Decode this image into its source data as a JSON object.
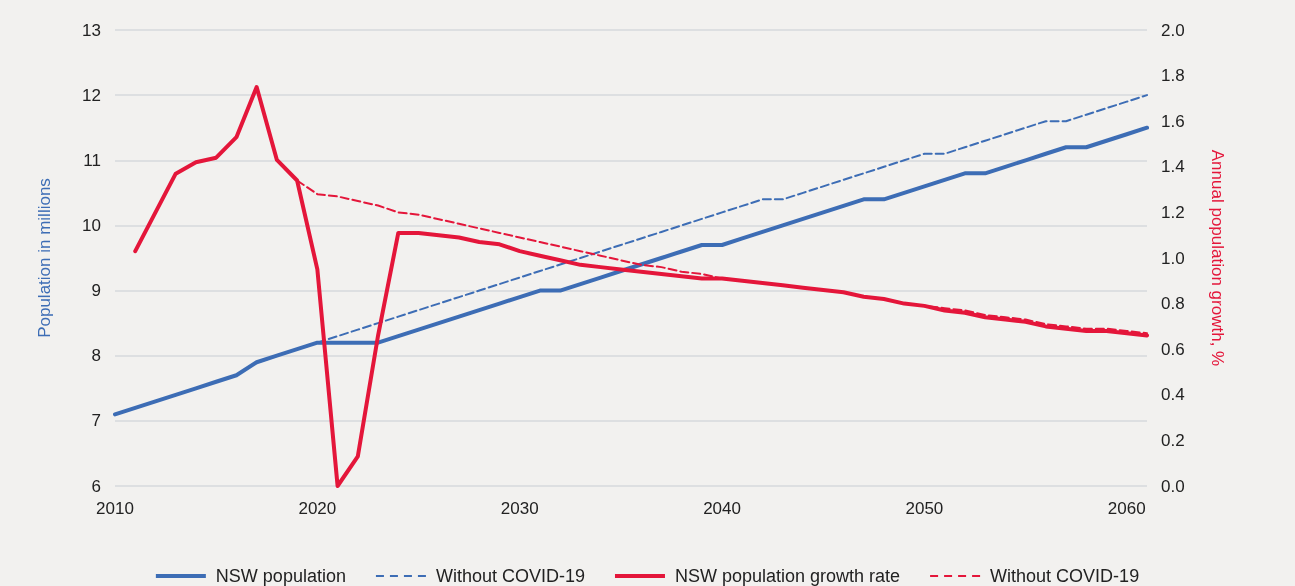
{
  "chart_data": {
    "type": "line",
    "ylabel": "Population in millions",
    "y2label": "Annual population growth, %",
    "xlim": [
      2010,
      2061
    ],
    "xticks": [
      2010,
      2020,
      2030,
      2040,
      2050,
      2060
    ],
    "ylim": [
      6,
      13
    ],
    "yticks": [
      6,
      7,
      8,
      9,
      10,
      11,
      12,
      13
    ],
    "y2lim": [
      0,
      2
    ],
    "y2ticks": [
      {
        "value": 0,
        "label": "0.0"
      },
      {
        "value": 0.2,
        "label": "0.2"
      },
      {
        "value": 0.4,
        "label": "0.4"
      },
      {
        "value": 0.6,
        "label": "0.6"
      },
      {
        "value": 0.8,
        "label": "0.8"
      },
      {
        "value": 1,
        "label": "1.0"
      },
      {
        "value": 1.2,
        "label": "1.2"
      },
      {
        "value": 1.4,
        "label": "1.4"
      },
      {
        "value": 1.6,
        "label": "1.6"
      },
      {
        "value": 1.8,
        "label": "1.8"
      },
      {
        "value": 2,
        "label": "2.0"
      }
    ],
    "grid": "y",
    "legend": "bottom",
    "marker": "none",
    "series": [
      {
        "name": "NSW population",
        "color": "#3d6db5",
        "line_style": "solid",
        "x": [
          2010,
          2011,
          2012,
          2013,
          2014,
          2015,
          2016,
          2017,
          2018,
          2019,
          2020,
          2021,
          2022,
          2023,
          2024,
          2025,
          2026,
          2027,
          2028,
          2029,
          2030,
          2031,
          2032,
          2033,
          2034,
          2035,
          2036,
          2037,
          2038,
          2039,
          2040,
          2041,
          2042,
          2043,
          2044,
          2045,
          2046,
          2047,
          2048,
          2049,
          2050,
          2051,
          2052,
          2053,
          2054,
          2055,
          2056,
          2057,
          2058,
          2059,
          2060,
          2061
        ],
        "values": [
          7.1,
          7.2,
          7.3,
          7.4,
          7.5,
          7.6,
          7.7,
          7.9,
          8.0,
          8.1,
          8.2,
          8.2,
          8.2,
          8.2,
          8.3,
          8.4,
          8.5,
          8.6,
          8.7,
          8.8,
          8.9,
          9.0,
          9.0,
          9.1,
          9.2,
          9.3,
          9.4,
          9.5,
          9.6,
          9.7,
          9.7,
          9.8,
          9.9,
          10.0,
          10.1,
          10.2,
          10.3,
          10.4,
          10.4,
          10.5,
          10.6,
          10.7,
          10.8,
          10.8,
          10.9,
          11.0,
          11.1,
          11.2,
          11.2,
          11.3,
          11.4,
          11.5
        ]
      },
      {
        "name": "Without COVID-19",
        "color": "#3d6db5",
        "line_style": "dashed",
        "x": [
          2020,
          2021,
          2022,
          2023,
          2024,
          2025,
          2026,
          2027,
          2028,
          2029,
          2030,
          2031,
          2032,
          2033,
          2034,
          2035,
          2036,
          2037,
          2038,
          2039,
          2040,
          2041,
          2042,
          2043,
          2044,
          2045,
          2046,
          2047,
          2048,
          2049,
          2050,
          2051,
          2052,
          2053,
          2054,
          2055,
          2056,
          2057,
          2058,
          2059,
          2060,
          2061
        ],
        "values": [
          8.2,
          8.3,
          8.4,
          8.5,
          8.6,
          8.7,
          8.8,
          8.9,
          9.0,
          9.1,
          9.2,
          9.3,
          9.4,
          9.5,
          9.6,
          9.7,
          9.8,
          9.9,
          10.0,
          10.1,
          10.2,
          10.3,
          10.4,
          10.4,
          10.5,
          10.6,
          10.7,
          10.8,
          10.9,
          11.0,
          11.1,
          11.1,
          11.2,
          11.3,
          11.4,
          11.5,
          11.6,
          11.6,
          11.7,
          11.8,
          11.9,
          12.0
        ]
      },
      {
        "name": "NSW population growth rate",
        "color": "#e4163a",
        "line_style": "solid",
        "axis": "y2",
        "x": [
          2011,
          2012,
          2013,
          2014,
          2015,
          2016,
          2017,
          2018,
          2019,
          2020,
          2021,
          2022,
          2023,
          2024,
          2025,
          2026,
          2027,
          2028,
          2029,
          2030,
          2031,
          2032,
          2033,
          2034,
          2035,
          2036,
          2037,
          2038,
          2039,
          2040,
          2041,
          2042,
          2043,
          2044,
          2045,
          2046,
          2047,
          2048,
          2049,
          2050,
          2051,
          2052,
          2053,
          2054,
          2055,
          2056,
          2057,
          2058,
          2059,
          2060,
          2061
        ],
        "values": [
          1.03,
          1.2,
          1.37,
          1.42,
          1.44,
          1.53,
          1.75,
          1.43,
          1.34,
          0.95,
          0.0,
          0.13,
          0.66,
          1.11,
          1.11,
          1.1,
          1.09,
          1.07,
          1.06,
          1.03,
          1.01,
          0.99,
          0.97,
          0.96,
          0.95,
          0.94,
          0.93,
          0.92,
          0.91,
          0.91,
          0.9,
          0.89,
          0.88,
          0.87,
          0.86,
          0.85,
          0.83,
          0.82,
          0.8,
          0.79,
          0.77,
          0.76,
          0.74,
          0.73,
          0.72,
          0.7,
          0.69,
          0.68,
          0.68,
          0.67,
          0.66
        ]
      },
      {
        "name": "Without COVID-19",
        "color": "#e4163a",
        "line_style": "dashed",
        "axis": "y2",
        "x": [
          2019,
          2020,
          2021,
          2022,
          2023,
          2024,
          2025,
          2026,
          2027,
          2028,
          2029,
          2030,
          2031,
          2032,
          2033,
          2034,
          2035,
          2036,
          2037,
          2038,
          2039,
          2040,
          2041,
          2042,
          2043,
          2044,
          2045,
          2046,
          2047,
          2048,
          2049,
          2050,
          2051,
          2052,
          2053,
          2054,
          2055,
          2056,
          2057,
          2058,
          2059,
          2060,
          2061
        ],
        "values": [
          1.34,
          1.28,
          1.27,
          1.25,
          1.23,
          1.2,
          1.19,
          1.17,
          1.15,
          1.13,
          1.11,
          1.09,
          1.07,
          1.05,
          1.03,
          1.01,
          0.99,
          0.97,
          0.96,
          0.94,
          0.93,
          0.91,
          0.9,
          0.89,
          0.88,
          0.87,
          0.86,
          0.85,
          0.83,
          0.82,
          0.8,
          0.79,
          0.78,
          0.77,
          0.75,
          0.74,
          0.73,
          0.71,
          0.7,
          0.69,
          0.69,
          0.68,
          0.67
        ]
      }
    ]
  }
}
